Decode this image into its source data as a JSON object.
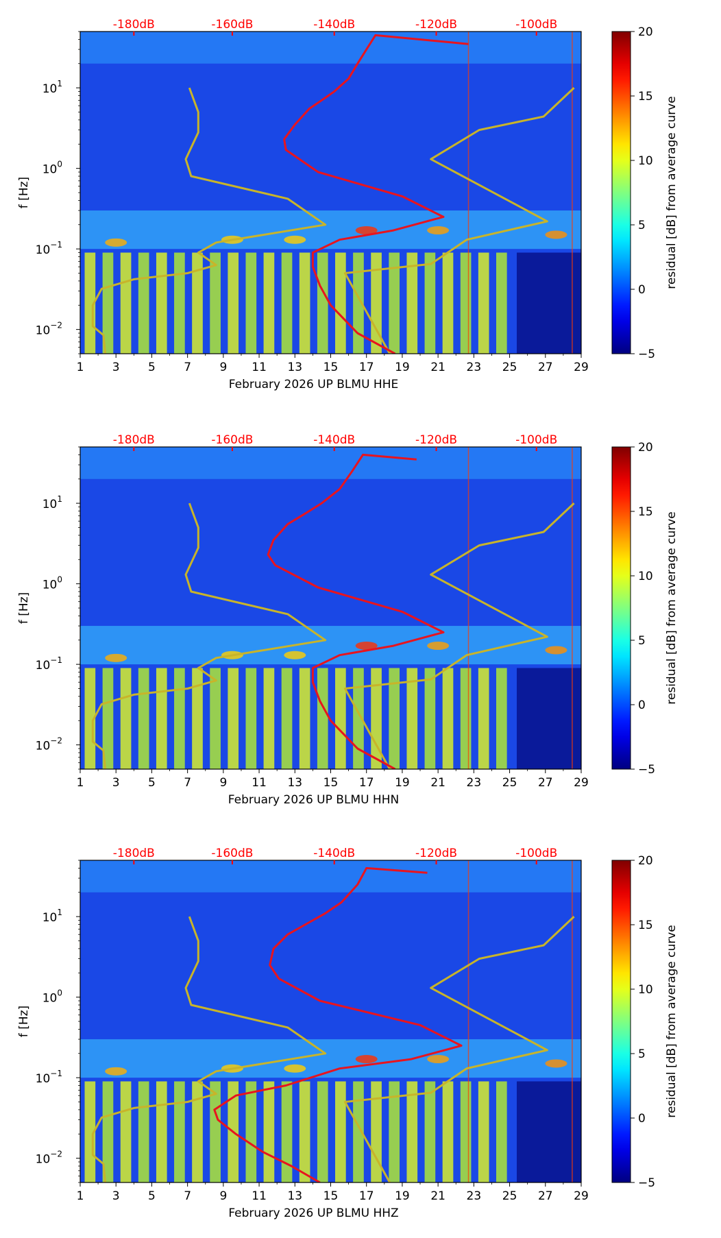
{
  "chart_data": [
    {
      "type": "heatmap",
      "channel": "HHE",
      "title": "",
      "xlabel": "February 2026 UP BLMU  HHE",
      "ylabel": "f [Hz]",
      "x_ticks": [
        "1",
        "3",
        "5",
        "7",
        "9",
        "11",
        "13",
        "15",
        "17",
        "19",
        "21",
        "23",
        "25",
        "27",
        "29"
      ],
      "y_ticks": [
        {
          "base": "10",
          "exp": "1",
          "value": 10
        },
        {
          "base": "10",
          "exp": "0",
          "value": 1
        },
        {
          "base": "10",
          "exp": "−1",
          "value": 0.1
        },
        {
          "base": "10",
          "exp": "−2",
          "value": 0.01
        }
      ],
      "xlim": [
        1,
        29
      ],
      "ylim": [
        0.005,
        50
      ],
      "db_scale_labels": [
        "-180dB",
        "-160dB",
        "-140dB",
        "-120dB",
        "-100dB"
      ],
      "colorbar": {
        "label": "residual [dB] from average curve",
        "ticks": [
          "20",
          "15",
          "10",
          "5",
          "0",
          "−5"
        ],
        "range": [
          -5,
          20
        ]
      },
      "gold_curve": [
        [
          2.4,
          0.005
        ],
        [
          2.3,
          0.0085
        ],
        [
          1.7,
          0.011
        ],
        [
          1.7,
          0.02
        ],
        [
          2.2,
          0.032
        ],
        [
          4,
          0.042
        ],
        [
          7,
          0.05
        ],
        [
          8.6,
          0.063
        ],
        [
          7.6,
          0.09
        ],
        [
          8.6,
          0.12
        ],
        [
          14.7,
          0.2
        ],
        [
          12.6,
          0.42
        ],
        [
          7.2,
          0.8
        ],
        [
          6.9,
          1.3
        ],
        [
          7.6,
          2.8
        ],
        [
          7.6,
          5
        ],
        [
          7.1,
          10
        ]
      ],
      "gold_curve2": [
        [
          18.3,
          0.005
        ],
        [
          15.8,
          0.05
        ],
        [
          20.6,
          0.065
        ],
        [
          22.6,
          0.13
        ],
        [
          27.1,
          0.22
        ],
        [
          20.6,
          1.3
        ],
        [
          23.3,
          3
        ],
        [
          26.9,
          4.4
        ],
        [
          28.6,
          10
        ]
      ],
      "red_curve": [
        [
          18.6,
          0.005
        ],
        [
          16.5,
          0.009
        ],
        [
          15,
          0.02
        ],
        [
          14.4,
          0.035
        ],
        [
          14,
          0.06
        ],
        [
          14,
          0.09
        ],
        [
          15.5,
          0.13
        ],
        [
          18.5,
          0.17
        ],
        [
          21.3,
          0.25
        ],
        [
          19,
          0.45
        ],
        [
          14.3,
          0.9
        ],
        [
          12.5,
          1.7
        ],
        [
          12.4,
          2.3
        ],
        [
          13,
          3.5
        ],
        [
          13.8,
          5.5
        ],
        [
          14.5,
          7
        ],
        [
          15.2,
          9
        ],
        [
          16,
          13
        ],
        [
          16.5,
          20
        ],
        [
          17,
          30
        ],
        [
          17.5,
          45
        ],
        [
          22.7,
          35
        ]
      ]
    },
    {
      "type": "heatmap",
      "channel": "HHN",
      "title": "",
      "xlabel": "February 2026 UP BLMU  HHN",
      "ylabel": "f [Hz]",
      "x_ticks": [
        "1",
        "3",
        "5",
        "7",
        "9",
        "11",
        "13",
        "15",
        "17",
        "19",
        "21",
        "23",
        "25",
        "27",
        "29"
      ],
      "y_ticks": [
        {
          "base": "10",
          "exp": "1",
          "value": 10
        },
        {
          "base": "10",
          "exp": "0",
          "value": 1
        },
        {
          "base": "10",
          "exp": "−1",
          "value": 0.1
        },
        {
          "base": "10",
          "exp": "−2",
          "value": 0.01
        }
      ],
      "xlim": [
        1,
        29
      ],
      "ylim": [
        0.005,
        50
      ],
      "db_scale_labels": [
        "-180dB",
        "-160dB",
        "-140dB",
        "-120dB",
        "-100dB"
      ],
      "colorbar": {
        "label": "residual [dB] from average curve",
        "ticks": [
          "20",
          "15",
          "10",
          "5",
          "0",
          "−5"
        ],
        "range": [
          -5,
          20
        ]
      },
      "gold_curve": [
        [
          2.4,
          0.005
        ],
        [
          2.3,
          0.0085
        ],
        [
          1.7,
          0.011
        ],
        [
          1.7,
          0.02
        ],
        [
          2.2,
          0.032
        ],
        [
          4,
          0.042
        ],
        [
          7,
          0.05
        ],
        [
          8.6,
          0.063
        ],
        [
          7.6,
          0.09
        ],
        [
          8.6,
          0.12
        ],
        [
          14.7,
          0.2
        ],
        [
          12.6,
          0.42
        ],
        [
          7.2,
          0.8
        ],
        [
          6.9,
          1.3
        ],
        [
          7.6,
          2.8
        ],
        [
          7.6,
          5
        ],
        [
          7.1,
          10
        ]
      ],
      "gold_curve2": [
        [
          18.3,
          0.005
        ],
        [
          15.8,
          0.05
        ],
        [
          20.6,
          0.065
        ],
        [
          22.6,
          0.13
        ],
        [
          27.1,
          0.22
        ],
        [
          20.6,
          1.3
        ],
        [
          23.3,
          3
        ],
        [
          26.9,
          4.4
        ],
        [
          28.6,
          10
        ]
      ],
      "red_curve": [
        [
          18.6,
          0.005
        ],
        [
          16.5,
          0.009
        ],
        [
          15,
          0.02
        ],
        [
          14.4,
          0.035
        ],
        [
          14,
          0.06
        ],
        [
          14,
          0.09
        ],
        [
          15.5,
          0.13
        ],
        [
          18.5,
          0.17
        ],
        [
          21.3,
          0.25
        ],
        [
          19,
          0.45
        ],
        [
          14.3,
          0.9
        ],
        [
          11.9,
          1.7
        ],
        [
          11.5,
          2.3
        ],
        [
          11.8,
          3.5
        ],
        [
          12.6,
          5.5
        ],
        [
          13.6,
          7.5
        ],
        [
          14.5,
          10
        ],
        [
          15.5,
          15
        ],
        [
          16.2,
          25
        ],
        [
          16.8,
          40
        ],
        [
          19.8,
          35
        ]
      ]
    },
    {
      "type": "heatmap",
      "channel": "HHZ",
      "title": "",
      "xlabel": "February 2026 UP BLMU  HHZ",
      "ylabel": "f [Hz]",
      "x_ticks": [
        "1",
        "3",
        "5",
        "7",
        "9",
        "11",
        "13",
        "15",
        "17",
        "19",
        "21",
        "23",
        "25",
        "27",
        "29"
      ],
      "y_ticks": [
        {
          "base": "10",
          "exp": "1",
          "value": 10
        },
        {
          "base": "10",
          "exp": "0",
          "value": 1
        },
        {
          "base": "10",
          "exp": "−1",
          "value": 0.1
        },
        {
          "base": "10",
          "exp": "−2",
          "value": 0.01
        }
      ],
      "xlim": [
        1,
        29
      ],
      "ylim": [
        0.005,
        50
      ],
      "db_scale_labels": [
        "-180dB",
        "-160dB",
        "-140dB",
        "-120dB",
        "-100dB"
      ],
      "colorbar": {
        "label": "residual [dB] from average curve",
        "ticks": [
          "20",
          "15",
          "10",
          "5",
          "0",
          "−5"
        ],
        "range": [
          -5,
          20
        ]
      },
      "gold_curve": [
        [
          2.4,
          0.005
        ],
        [
          2.3,
          0.0085
        ],
        [
          1.7,
          0.011
        ],
        [
          1.7,
          0.02
        ],
        [
          2.2,
          0.032
        ],
        [
          4,
          0.042
        ],
        [
          7,
          0.05
        ],
        [
          8.6,
          0.063
        ],
        [
          7.6,
          0.09
        ],
        [
          8.6,
          0.12
        ],
        [
          14.7,
          0.2
        ],
        [
          12.6,
          0.42
        ],
        [
          7.2,
          0.8
        ],
        [
          6.9,
          1.3
        ],
        [
          7.6,
          2.8
        ],
        [
          7.6,
          5
        ],
        [
          7.1,
          10
        ]
      ],
      "gold_curve2": [
        [
          18.3,
          0.005
        ],
        [
          15.8,
          0.05
        ],
        [
          20.6,
          0.065
        ],
        [
          22.6,
          0.13
        ],
        [
          27.1,
          0.22
        ],
        [
          20.6,
          1.3
        ],
        [
          23.3,
          3
        ],
        [
          26.9,
          4.4
        ],
        [
          28.6,
          10
        ]
      ],
      "red_curve": [
        [
          14.4,
          0.005
        ],
        [
          12.8,
          0.008
        ],
        [
          11.2,
          0.012
        ],
        [
          9.7,
          0.02
        ],
        [
          8.7,
          0.03
        ],
        [
          8.5,
          0.04
        ],
        [
          9.7,
          0.06
        ],
        [
          12.5,
          0.08
        ],
        [
          15.5,
          0.13
        ],
        [
          19.5,
          0.17
        ],
        [
          22.3,
          0.25
        ],
        [
          20,
          0.45
        ],
        [
          14.4,
          0.9
        ],
        [
          12.1,
          1.7
        ],
        [
          11.6,
          2.5
        ],
        [
          11.8,
          4
        ],
        [
          12.6,
          6
        ],
        [
          13.6,
          8
        ],
        [
          14.7,
          11
        ],
        [
          15.6,
          15
        ],
        [
          16.5,
          25
        ],
        [
          17,
          40
        ],
        [
          20.4,
          35
        ]
      ]
    }
  ]
}
